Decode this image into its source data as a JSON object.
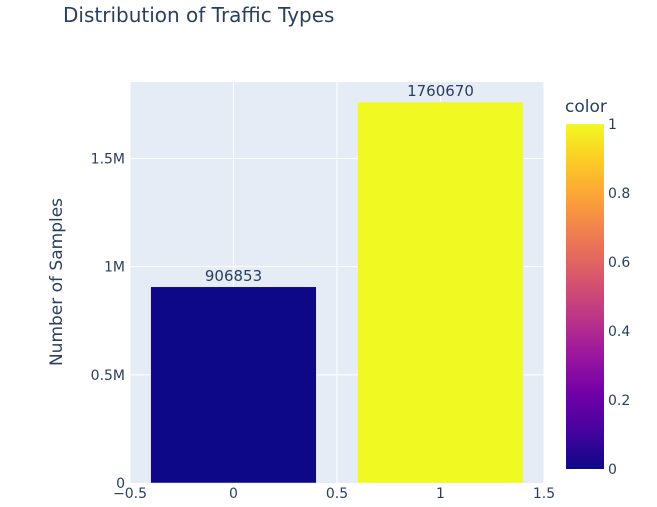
{
  "chart_data": {
    "type": "bar",
    "title": "Distribution of Traffic Types",
    "xlabel": "",
    "ylabel": "Number of Samples",
    "x": [
      0,
      1
    ],
    "values": [
      906853,
      1760670
    ],
    "data_labels": [
      "906853",
      "1760670"
    ],
    "color_values": [
      0,
      1
    ],
    "xlim": [
      -0.5,
      1.5
    ],
    "ylim": [
      0,
      1853337
    ],
    "x_ticks": [
      -0.5,
      0,
      0.5,
      1,
      1.5
    ],
    "x_tick_labels": [
      "−0.5",
      "0",
      "0.5",
      "1",
      "1.5"
    ],
    "y_ticks": [
      0,
      500000,
      1000000,
      1500000
    ],
    "y_tick_labels": [
      "0",
      "0.5M",
      "1M",
      "1.5M"
    ],
    "grid": true,
    "bar_width": 0.8,
    "colorbar": {
      "title": "color",
      "range": [
        0,
        1
      ],
      "ticks": [
        0,
        0.2,
        0.4,
        0.6,
        0.8,
        1
      ],
      "tick_labels": [
        "0",
        "0.2",
        "0.4",
        "0.6",
        "0.8",
        "1"
      ],
      "colorscale": [
        "#0d0887",
        "#46039f",
        "#7201a8",
        "#9c179e",
        "#bd3786",
        "#d8576b",
        "#ed7953",
        "#fb9f3a",
        "#fdca26",
        "#f0f921"
      ]
    },
    "colors": {
      "plot_bg": "#e5ecf6",
      "grid": "#ffffff",
      "text": "#2a3f5f",
      "low": "#0d0887",
      "high": "#f0f921"
    }
  }
}
